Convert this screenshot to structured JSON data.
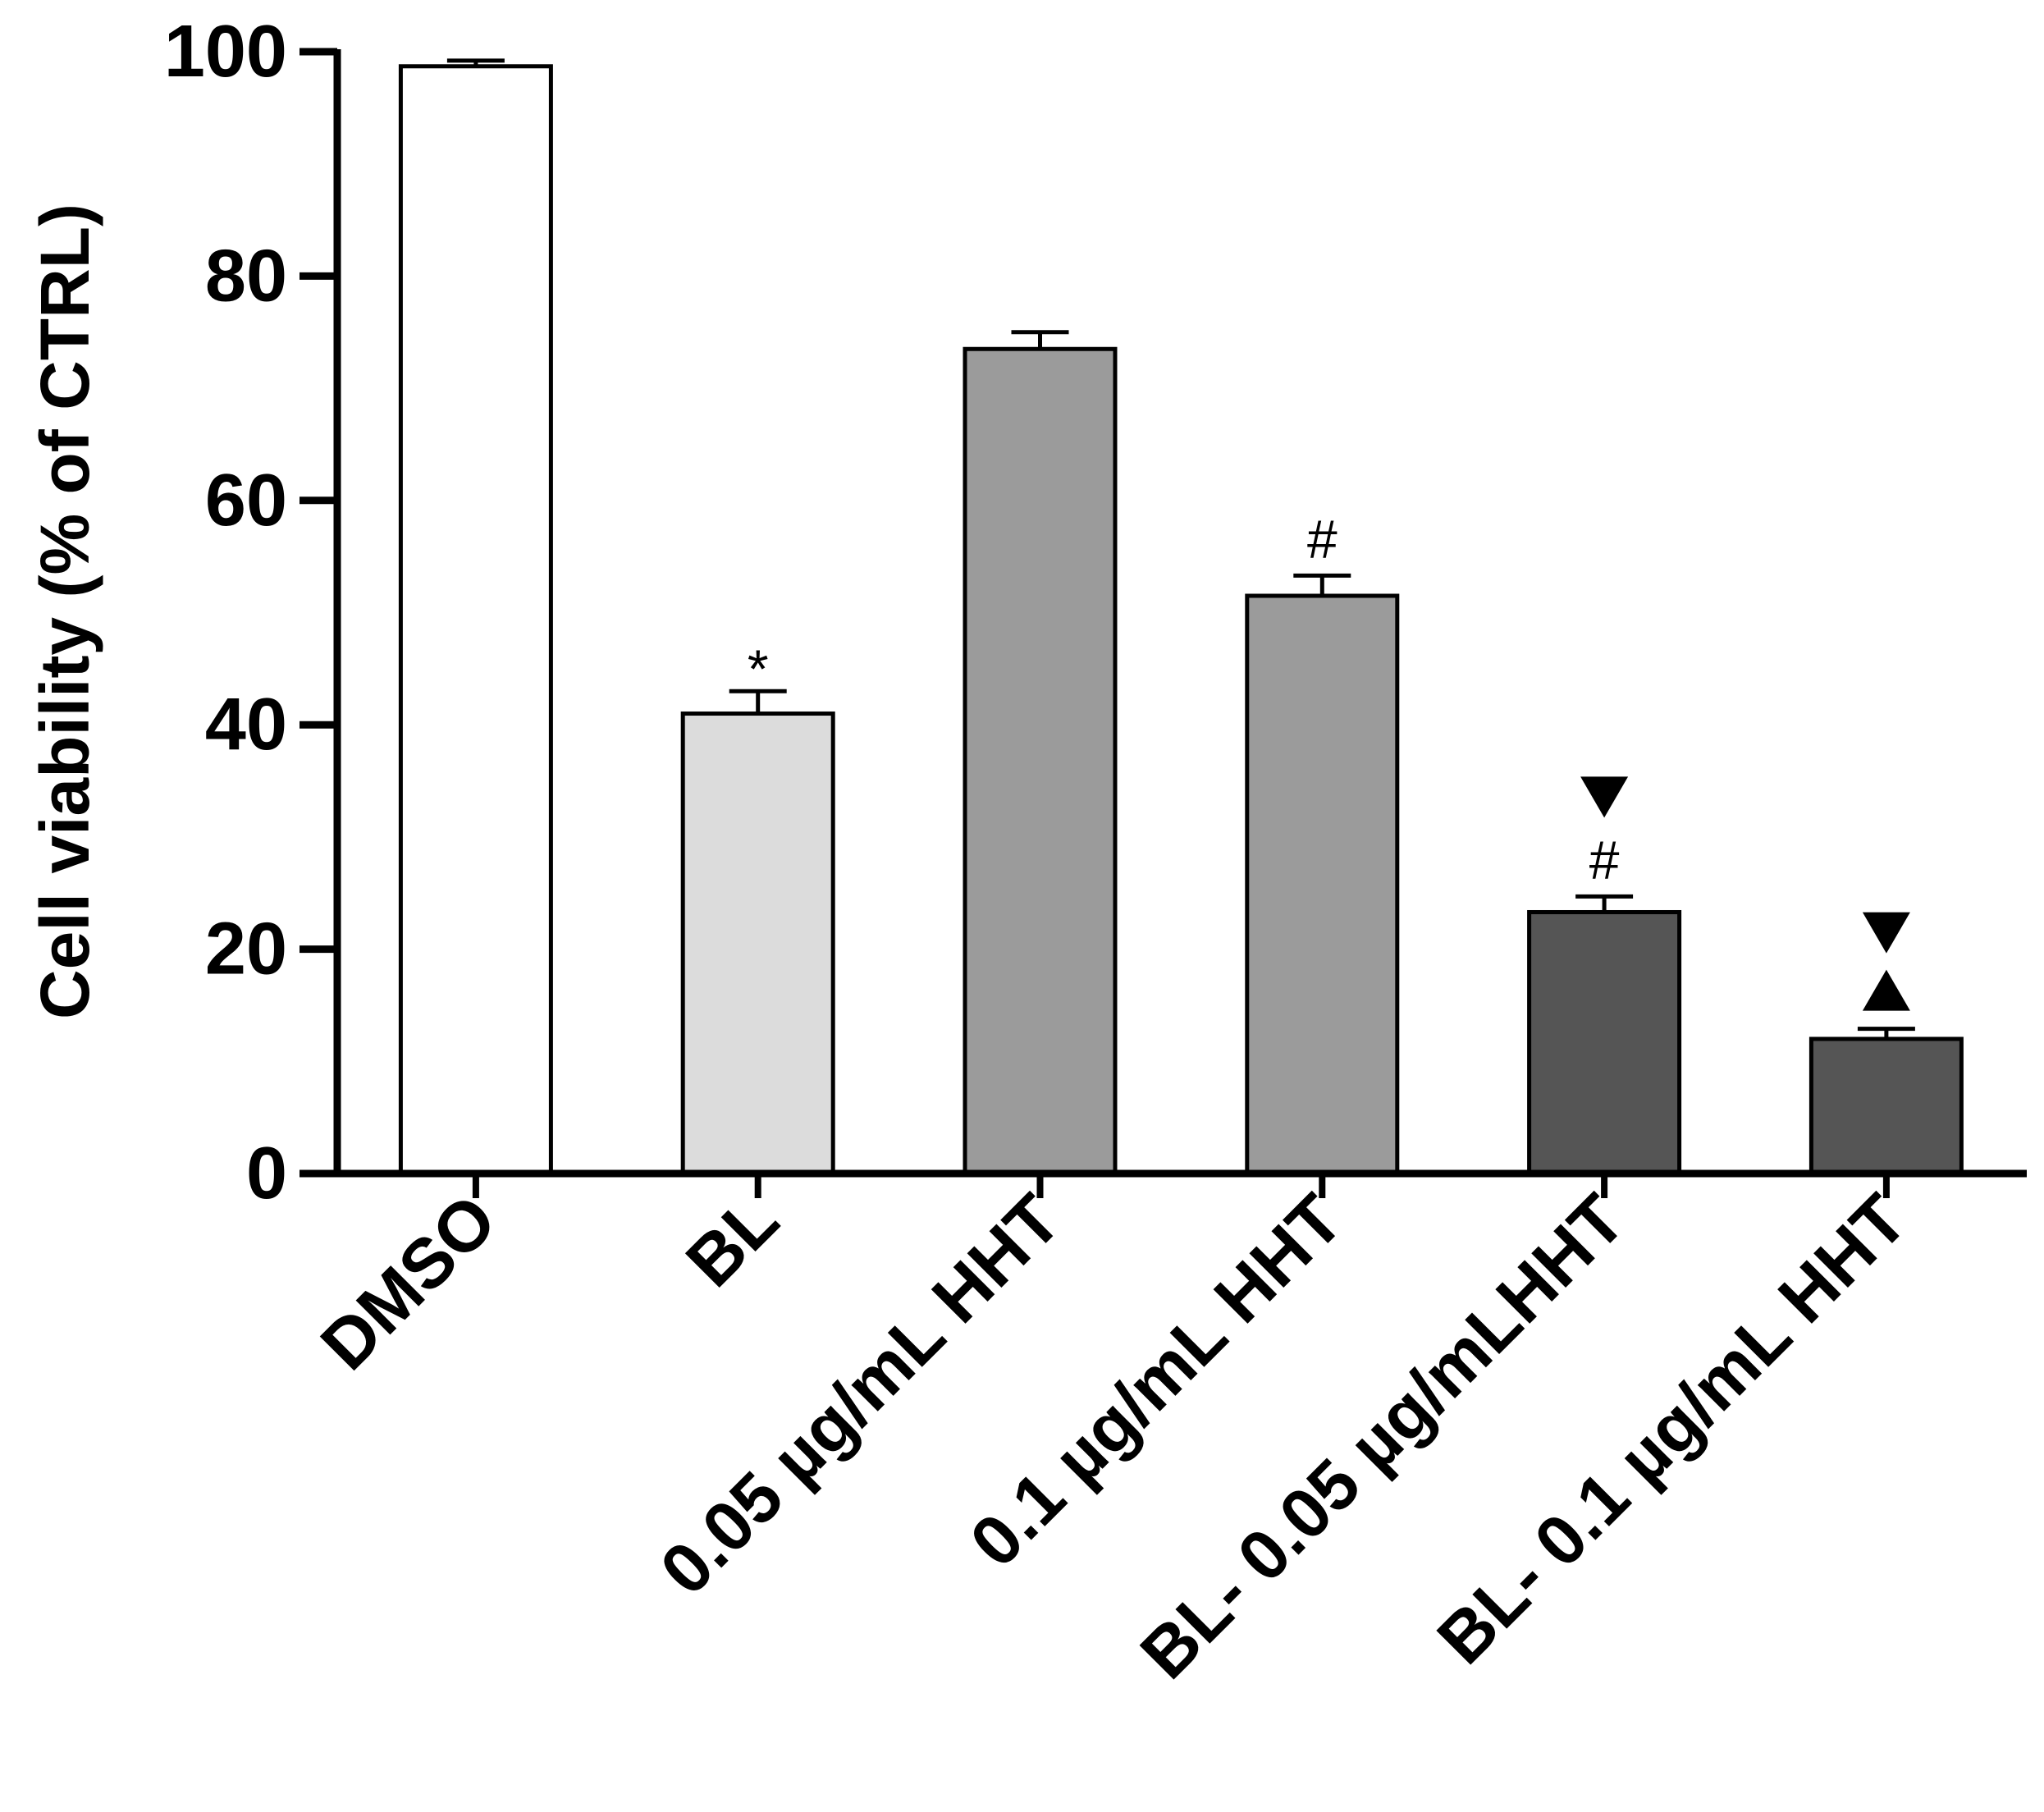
{
  "chart_data": {
    "type": "bar",
    "title": "",
    "xlabel": "",
    "ylabel": "Cell viability (% of CTRL)",
    "ylim": [
      0,
      100
    ],
    "yticks": [
      "0",
      "20",
      "40",
      "60",
      "80",
      "100"
    ],
    "grid": false,
    "categories": [
      "DMSO",
      "BL",
      "0.05 µg/mL HHT",
      "0.1 µg/mL HHT",
      "BL- 0.05 µg/mLHHT",
      "BL- 0.1 µg/mL HHT"
    ],
    "values": [
      98.7,
      41.0,
      73.5,
      51.5,
      23.3,
      12.0
    ],
    "errors": [
      0.5,
      2.0,
      1.5,
      1.8,
      1.4,
      0.9
    ],
    "colors": [
      "#ffffff",
      "#dcdcdc",
      "#9b9b9b",
      "#9b9b9b",
      "#555555",
      "#555555"
    ],
    "annotations": [
      [],
      [
        "*"
      ],
      [],
      [
        "#"
      ],
      [
        "#",
        "down-triangle"
      ],
      [
        "up-triangle",
        "down-triangle"
      ]
    ]
  }
}
